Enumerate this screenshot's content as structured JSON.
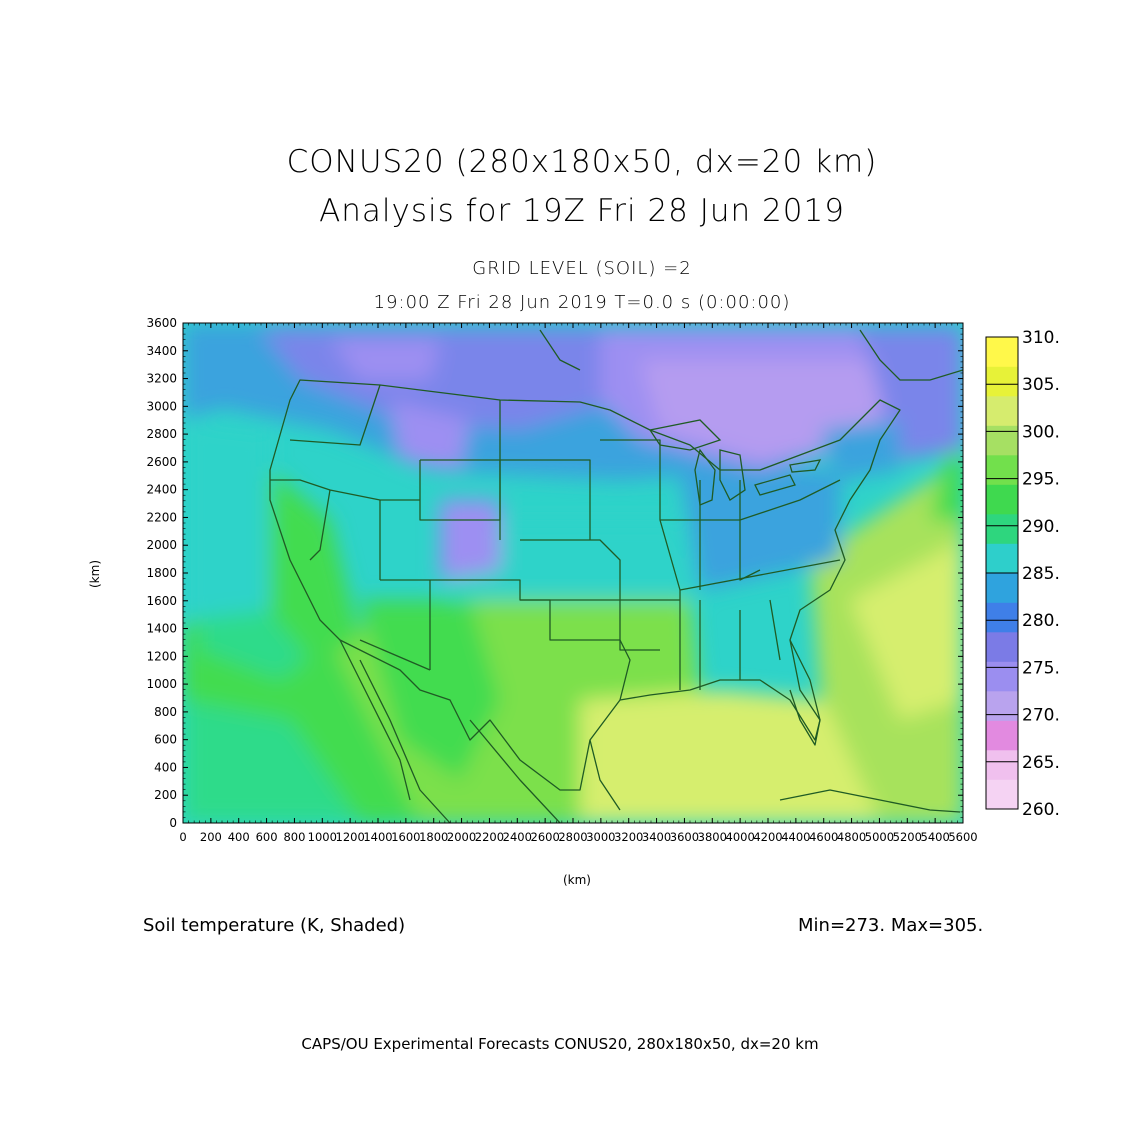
{
  "titles": {
    "line1": "CONUS20 (280x180x50, dx=20 km)",
    "line2": "Analysis for 19Z Fri 28 Jun 2019",
    "line3": "GRID LEVEL (SOIL) =2",
    "line4": "19:00 Z Fri 28 Jun 2019    T=0.0 s (0:00:00)"
  },
  "field_label": "Soil temperature (K, Shaded)",
  "minmax": "Min=273.  Max=305.",
  "footer": "CAPS/OU Experimental Forecasts  CONUS20, 280x180x50, dx=20 km",
  "axes": {
    "x_unit": "(km)",
    "y_unit": "(km)",
    "x_ticks": [
      "0",
      "200",
      "400",
      "600",
      "800",
      "1000",
      "1200",
      "1400",
      "1600",
      "1800",
      "2000",
      "2200",
      "2400",
      "2600",
      "2800",
      "3000",
      "3200",
      "3400",
      "3600",
      "3800",
      "4000",
      "4200",
      "4400",
      "4600",
      "4800",
      "5000",
      "5200",
      "5400",
      "5600"
    ],
    "y_ticks": [
      "0",
      "200",
      "400",
      "600",
      "800",
      "1000",
      "1200",
      "1400",
      "1600",
      "1800",
      "2000",
      "2200",
      "2400",
      "2600",
      "2800",
      "3000",
      "3200",
      "3400",
      "3600"
    ],
    "x_range": [
      0,
      5600
    ],
    "y_range": [
      0,
      3600
    ]
  },
  "colorbar": {
    "labels": [
      "260.",
      "265.",
      "270.",
      "275.",
      "280.",
      "285.",
      "290.",
      "295.",
      "300.",
      "305.",
      "310."
    ],
    "colors": [
      "#f5d3f3",
      "#f0c0ee",
      "#e28ae0",
      "#b9a3ee",
      "#9b8ef0",
      "#7b7be6",
      "#3f7fe8",
      "#2fa3de",
      "#2ecfcb",
      "#2ed67e",
      "#3fd94f",
      "#72e04c",
      "#a6e063",
      "#d6ec6e",
      "#e7f238",
      "#fff84a"
    ]
  },
  "field": {
    "colors": {
      "k270": "#b59cf0",
      "k275": "#9d8ff2",
      "k280": "#7a85ea",
      "k285": "#3aa3de",
      "k290": "#2ed3c9",
      "k292": "#2edb8a",
      "k295": "#42dc50",
      "k298": "#7ce04c",
      "k300": "#a7e25c",
      "k303": "#d6ee6e",
      "coast": "#1f5b24"
    }
  }
}
